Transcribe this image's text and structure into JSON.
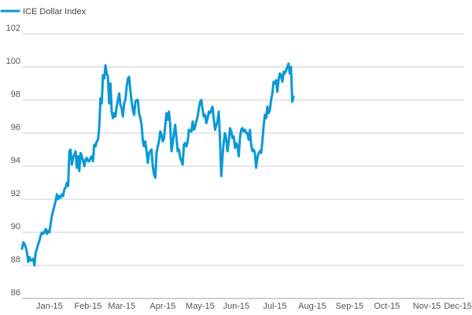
{
  "chart_data": {
    "type": "line",
    "title": "",
    "xlabel": "",
    "ylabel": "",
    "legend": {
      "placement": "top-left"
    },
    "grid": true,
    "ylim": [
      86,
      102
    ],
    "yticks": [
      86,
      88,
      90,
      92,
      94,
      96,
      98,
      100,
      102
    ],
    "xlim": [
      0,
      355
    ],
    "xticks": [
      {
        "label": "Jan-15",
        "day": 22
      },
      {
        "label": "Feb-15",
        "day": 53
      },
      {
        "label": "Mar-15",
        "day": 80
      },
      {
        "label": "Apr-15",
        "day": 113
      },
      {
        "label": "May-15",
        "day": 143
      },
      {
        "label": "Jun-15",
        "day": 172
      },
      {
        "label": "Jul-15",
        "day": 203
      },
      {
        "label": "Aug-15",
        "day": 233
      },
      {
        "label": "Sep-15",
        "day": 263
      },
      {
        "label": "Oct-15",
        "day": 293
      },
      {
        "label": "Nov-15",
        "day": 325
      },
      {
        "label": "Dec-15",
        "day": 350
      }
    ],
    "series": [
      {
        "name": "ICE Dollar Index",
        "color": "#0a99d6",
        "points": [
          [
            0,
            89.0
          ],
          [
            1,
            89.4
          ],
          [
            2,
            89.3
          ],
          [
            3,
            89.1
          ],
          [
            4,
            88.8
          ],
          [
            5,
            88.2
          ],
          [
            6,
            88.5
          ],
          [
            7,
            88.3
          ],
          [
            8,
            88.3
          ],
          [
            9,
            88.4
          ],
          [
            10,
            88.0
          ],
          [
            11,
            88.8
          ],
          [
            12,
            89.0
          ],
          [
            13,
            89.3
          ],
          [
            14,
            89.5
          ],
          [
            15,
            89.8
          ],
          [
            16,
            90.0
          ],
          [
            17,
            89.9
          ],
          [
            18,
            90.0
          ],
          [
            19,
            90.2
          ],
          [
            20,
            89.9
          ],
          [
            21,
            90.1
          ],
          [
            22,
            90.0
          ],
          [
            23,
            90.5
          ],
          [
            24,
            91.0
          ],
          [
            25,
            91.3
          ],
          [
            26,
            91.6
          ],
          [
            27,
            91.9
          ],
          [
            28,
            92.3
          ],
          [
            29,
            92.0
          ],
          [
            30,
            92.2
          ],
          [
            31,
            92.1
          ],
          [
            32,
            92.3
          ],
          [
            33,
            92.2
          ],
          [
            34,
            92.6
          ],
          [
            35,
            92.7
          ],
          [
            36,
            93.0
          ],
          [
            37,
            92.8
          ],
          [
            38,
            94.9
          ],
          [
            39,
            95.0
          ],
          [
            40,
            94.1
          ],
          [
            41,
            94.5
          ],
          [
            42,
            94.7
          ],
          [
            43,
            94.9
          ],
          [
            44,
            93.9
          ],
          [
            45,
            94.6
          ],
          [
            46,
            93.7
          ],
          [
            47,
            94.8
          ],
          [
            48,
            94.6
          ],
          [
            49,
            94.3
          ],
          [
            50,
            94.0
          ],
          [
            51,
            94.4
          ],
          [
            52,
            94.5
          ],
          [
            53,
            94.3
          ],
          [
            54,
            94.3
          ],
          [
            55,
            94.5
          ],
          [
            56,
            94.6
          ],
          [
            57,
            94.3
          ],
          [
            58,
            95.3
          ],
          [
            59,
            95.2
          ],
          [
            60,
            95.5
          ],
          [
            61,
            95.6
          ],
          [
            62,
            96.4
          ],
          [
            63,
            98.1
          ],
          [
            64,
            97.8
          ],
          [
            65,
            99.5
          ],
          [
            66,
            99.3
          ],
          [
            67,
            100.1
          ],
          [
            68,
            99.6
          ],
          [
            69,
            99.4
          ],
          [
            70,
            97.8
          ],
          [
            71,
            99.0
          ],
          [
            72,
            97.3
          ],
          [
            73,
            96.9
          ],
          [
            74,
            97.2
          ],
          [
            75,
            97.0
          ],
          [
            76,
            97.6
          ],
          [
            77,
            98.0
          ],
          [
            78,
            98.4
          ],
          [
            79,
            97.7
          ],
          [
            80,
            97.5
          ],
          [
            81,
            97.0
          ],
          [
            82,
            97.8
          ],
          [
            83,
            98.0
          ],
          [
            84,
            98.8
          ],
          [
            85,
            99.3
          ],
          [
            86,
            99.4
          ],
          [
            87,
            98.6
          ],
          [
            88,
            97.9
          ],
          [
            89,
            97.4
          ],
          [
            90,
            97.1
          ],
          [
            91,
            97.9
          ],
          [
            92,
            98.0
          ],
          [
            93,
            98.0
          ],
          [
            94,
            97.2
          ],
          [
            95,
            96.9
          ],
          [
            96,
            96.5
          ],
          [
            97,
            95.5
          ],
          [
            98,
            95.2
          ],
          [
            99,
            95.5
          ],
          [
            100,
            94.9
          ],
          [
            101,
            94.2
          ],
          [
            102,
            94.8
          ],
          [
            103,
            94.9
          ],
          [
            104,
            95.0
          ],
          [
            105,
            94.0
          ],
          [
            106,
            93.5
          ],
          [
            107,
            93.3
          ],
          [
            108,
            94.8
          ],
          [
            109,
            95.2
          ],
          [
            110,
            95.5
          ],
          [
            111,
            96.1
          ],
          [
            112,
            95.9
          ],
          [
            113,
            95.5
          ],
          [
            114,
            95.7
          ],
          [
            115,
            96.5
          ],
          [
            116,
            97.2
          ],
          [
            117,
            96.8
          ],
          [
            118,
            97.3
          ],
          [
            119,
            96.5
          ],
          [
            120,
            94.9
          ],
          [
            121,
            95.4
          ],
          [
            122,
            96.0
          ],
          [
            123,
            96.5
          ],
          [
            124,
            95.7
          ],
          [
            125,
            94.9
          ],
          [
            126,
            95.0
          ],
          [
            127,
            94.5
          ],
          [
            128,
            94.3
          ],
          [
            129,
            94.1
          ],
          [
            130,
            95.3
          ],
          [
            131,
            95.4
          ],
          [
            132,
            95.2
          ],
          [
            133,
            95.5
          ],
          [
            134,
            96.2
          ],
          [
            135,
            96.1
          ],
          [
            136,
            96.1
          ],
          [
            137,
            96.7
          ],
          [
            138,
            96.2
          ],
          [
            139,
            96.4
          ],
          [
            140,
            96.7
          ],
          [
            141,
            97.0
          ],
          [
            142,
            97.5
          ],
          [
            143,
            97.9
          ],
          [
            144,
            98.0
          ],
          [
            145,
            97.4
          ],
          [
            146,
            97.0
          ],
          [
            147,
            97.1
          ],
          [
            148,
            96.6
          ],
          [
            149,
            96.9
          ],
          [
            150,
            97.3
          ],
          [
            151,
            97.2
          ],
          [
            152,
            97.4
          ],
          [
            153,
            97.6
          ],
          [
            154,
            96.8
          ],
          [
            155,
            96.2
          ],
          [
            156,
            96.5
          ],
          [
            157,
            96.7
          ],
          [
            158,
            97.3
          ],
          [
            159,
            95.5
          ],
          [
            160,
            93.4
          ],
          [
            161,
            94.6
          ],
          [
            162,
            95.5
          ],
          [
            163,
            96.0
          ],
          [
            164,
            95.6
          ],
          [
            165,
            94.9
          ],
          [
            166,
            95.5
          ],
          [
            167,
            96.3
          ],
          [
            168,
            96.1
          ],
          [
            169,
            95.7
          ],
          [
            170,
            95.8
          ],
          [
            171,
            95.1
          ],
          [
            172,
            95.4
          ],
          [
            173,
            95.2
          ],
          [
            174,
            94.6
          ],
          [
            175,
            95.7
          ],
          [
            176,
            96.2
          ],
          [
            177,
            96.3
          ],
          [
            178,
            96.1
          ],
          [
            179,
            96.2
          ],
          [
            180,
            96.0
          ],
          [
            181,
            96.0
          ],
          [
            182,
            95.6
          ],
          [
            183,
            96.2
          ],
          [
            184,
            95.3
          ],
          [
            185,
            94.9
          ],
          [
            186,
            95.0
          ],
          [
            187,
            94.8
          ],
          [
            188,
            93.9
          ],
          [
            189,
            94.5
          ],
          [
            190,
            94.8
          ],
          [
            191,
            94.9
          ],
          [
            192,
            94.8
          ],
          [
            193,
            95.5
          ],
          [
            194,
            96.4
          ],
          [
            195,
            97.1
          ],
          [
            196,
            96.9
          ],
          [
            197,
            97.6
          ],
          [
            198,
            97.2
          ],
          [
            199,
            97.4
          ],
          [
            200,
            98.0
          ],
          [
            201,
            98.4
          ],
          [
            202,
            99.1
          ],
          [
            203,
            99.0
          ],
          [
            204,
            99.2
          ],
          [
            205,
            98.5
          ],
          [
            206,
            99.2
          ],
          [
            207,
            99.6
          ],
          [
            208,
            99.5
          ],
          [
            209,
            99.1
          ],
          [
            210,
            99.7
          ],
          [
            211,
            99.6
          ],
          [
            212,
            99.8
          ],
          [
            213,
            100.0
          ],
          [
            214,
            100.2
          ],
          [
            215,
            99.6
          ],
          [
            216,
            100.0
          ],
          [
            217,
            97.9
          ],
          [
            218,
            98.2
          ]
        ]
      }
    ]
  }
}
